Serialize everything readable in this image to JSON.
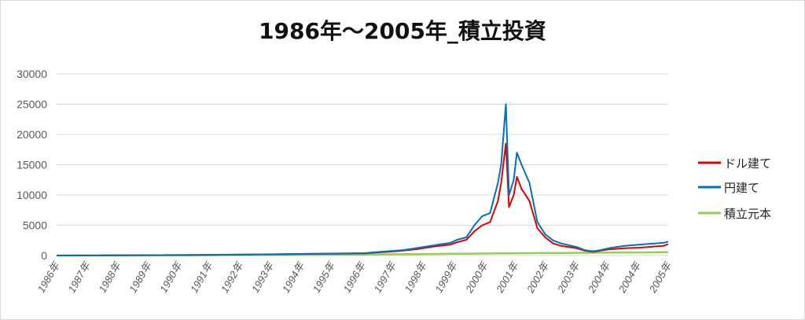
{
  "chart_data": {
    "type": "line",
    "title": "1986年～2005年_積立投資",
    "xlabel": "",
    "ylabel": "",
    "ylim": [
      0,
      30000
    ],
    "y_ticks": [
      0,
      5000,
      10000,
      15000,
      20000,
      25000,
      30000
    ],
    "x_tick_labels": [
      "1986年",
      "1987年",
      "1988年",
      "1989年",
      "1990年",
      "1991年",
      "1992年",
      "1993年",
      "1994年",
      "1995年",
      "1996年",
      "1997年",
      "1998年",
      "1999年",
      "2000年",
      "2001年",
      "2002年",
      "2003年",
      "2004年",
      "2004年",
      "2005年"
    ],
    "grid": "horizontal",
    "legend_position": "right",
    "x": [
      1986.0,
      1988.0,
      1990.0,
      1992.0,
      1993.0,
      1994.0,
      1995.0,
      1995.8,
      1996.0,
      1996.5,
      1997.0,
      1997.5,
      1998.0,
      1998.5,
      1998.7,
      1999.0,
      1999.25,
      1999.5,
      1999.75,
      2000.0,
      2000.1,
      2000.25,
      2000.35,
      2000.5,
      2000.6,
      2000.75,
      2001.0,
      2001.25,
      2001.5,
      2001.75,
      2002.0,
      2002.5,
      2002.75,
      2003.0,
      2003.25,
      2003.5,
      2003.75,
      2004.0,
      2004.5,
      2004.75,
      2005.0,
      2005.25,
      2005.4
    ],
    "series": [
      {
        "name": "ドル建て",
        "color": "#e00000",
        "values": [
          0,
          30,
          80,
          150,
          200,
          260,
          310,
          360,
          450,
          600,
          800,
          1100,
          1500,
          1800,
          2200,
          2600,
          4000,
          5000,
          5500,
          9000,
          12000,
          18500,
          8000,
          10000,
          13000,
          11000,
          9000,
          4500,
          3000,
          2000,
          1600,
          1200,
          800,
          600,
          800,
          1000,
          1100,
          1200,
          1300,
          1400,
          1500,
          1600,
          1900
        ]
      },
      {
        "name": "円建て",
        "color": "#0070c0",
        "values": [
          0,
          30,
          80,
          160,
          220,
          280,
          340,
          400,
          500,
          700,
          900,
          1300,
          1700,
          2100,
          2600,
          3000,
          5000,
          6500,
          7000,
          12000,
          15000,
          25000,
          10000,
          12500,
          17000,
          15000,
          12000,
          5500,
          3500,
          2500,
          2000,
          1400,
          900,
          700,
          900,
          1200,
          1400,
          1600,
          1800,
          1900,
          2000,
          2100,
          2300
        ]
      },
      {
        "name": "積立元本",
        "color": "#92d050",
        "values": [
          10,
          20,
          40,
          80,
          100,
          120,
          140,
          170,
          180,
          200,
          220,
          240,
          260,
          280,
          290,
          300,
          310,
          320,
          340,
          350,
          355,
          360,
          365,
          370,
          375,
          380,
          390,
          400,
          410,
          420,
          430,
          440,
          450,
          460,
          470,
          480,
          490,
          500,
          510,
          520,
          530,
          540,
          550
        ]
      }
    ]
  }
}
